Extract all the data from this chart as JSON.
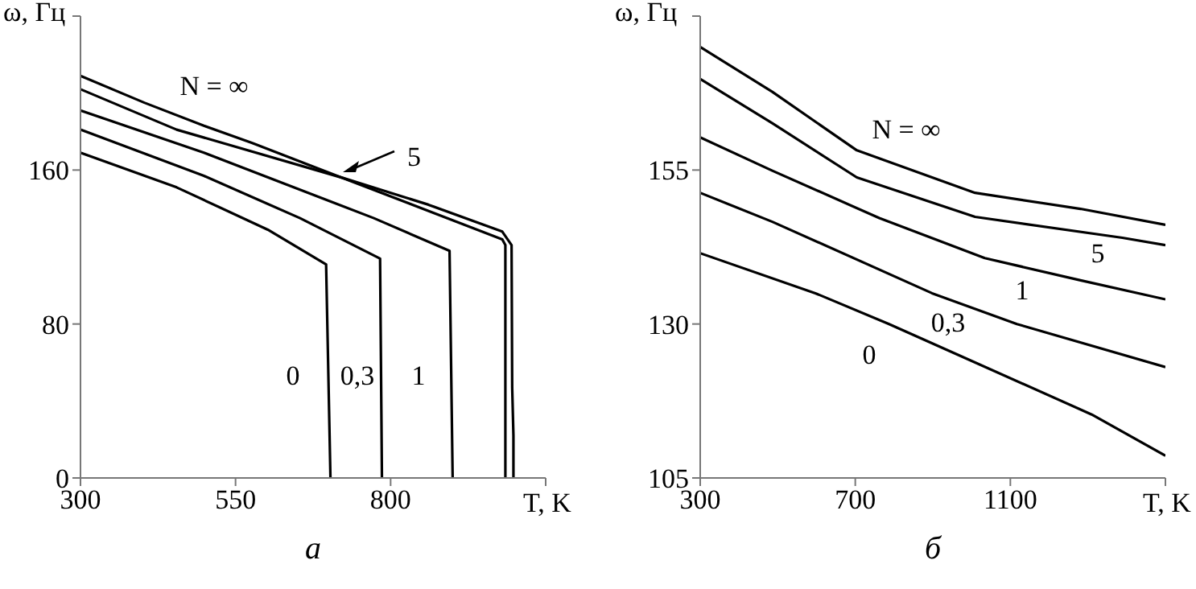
{
  "chart_data": [
    {
      "type": "line",
      "title": "а",
      "xlabel": "T, K",
      "ylabel": "ω, Гц",
      "xlim": [
        300,
        1050
      ],
      "xticks": [
        300,
        550,
        800,
        {
          "value": 1050,
          "label": null
        }
      ],
      "ylim": [
        0,
        240
      ],
      "yticks": [
        0,
        80,
        160,
        {
          "value": 240,
          "label": null
        }
      ],
      "marker": "none",
      "line_style": "solid",
      "series": [
        {
          "name": "N = ∞",
          "color": "#000000",
          "x": [
            300,
            403,
            499,
            577,
            722,
            861,
            980,
            995,
            996,
            998,
            998
          ],
          "values": [
            209,
            195,
            183,
            174,
            156,
            142,
            128,
            121,
            47,
            22,
            0
          ]
        },
        {
          "name": "5",
          "color": "#000000",
          "x": [
            300,
            455,
            722,
            980,
            985,
            985
          ],
          "values": [
            202,
            181,
            156,
            124,
            121,
            0
          ]
        },
        {
          "name": "1",
          "color": "#000000",
          "x": [
            300,
            499,
            773,
            895,
            900
          ],
          "values": [
            191,
            169,
            135,
            118,
            0
          ]
        },
        {
          "name": "0,3",
          "color": "#000000",
          "x": [
            300,
            499,
            654,
            783,
            786
          ],
          "values": [
            181,
            157,
            135,
            114,
            0
          ]
        },
        {
          "name": "0",
          "color": "#000000",
          "x": [
            300,
            455,
            602,
            696,
            703
          ],
          "values": [
            169,
            151,
            129,
            111,
            0
          ]
        }
      ]
    },
    {
      "type": "line",
      "title": "б",
      "xlabel": "T, K",
      "ylabel": "ω, Гц",
      "xlim": [
        300,
        1500
      ],
      "xticks": [
        300,
        700,
        1100,
        {
          "value": 1500,
          "label": null
        }
      ],
      "ylim": [
        105,
        180
      ],
      "yticks": [
        105,
        130,
        155,
        {
          "value": 180,
          "label": null
        }
      ],
      "marker": "none",
      "line_style": "solid",
      "series": [
        {
          "name": "N = ∞",
          "color": "#000000",
          "x": [
            300,
            486,
            704,
            1009,
            1281,
            1500
          ],
          "values": [
            175,
            167.7,
            158.2,
            151.3,
            148.7,
            146.1
          ]
        },
        {
          "name": "5",
          "color": "#000000",
          "x": [
            300,
            486,
            704,
            1009,
            1389,
            1500
          ],
          "values": [
            169.8,
            162.6,
            153.8,
            147.4,
            144,
            142.8
          ]
        },
        {
          "name": "1",
          "color": "#000000",
          "x": [
            300,
            486,
            762,
            1034,
            1281,
            1500
          ],
          "values": [
            160.3,
            154.9,
            147.2,
            140.7,
            137.1,
            134
          ]
        },
        {
          "name": "0,3",
          "color": "#000000",
          "x": [
            300,
            486,
            898,
            1117,
            1500
          ],
          "values": [
            151.3,
            146.6,
            135,
            130,
            123
          ]
        },
        {
          "name": "0",
          "color": "#000000",
          "x": [
            300,
            597,
            787,
            972,
            1310,
            1500
          ],
          "values": [
            141.5,
            135,
            130,
            124.8,
            115.3,
            108.6
          ]
        }
      ]
    }
  ]
}
